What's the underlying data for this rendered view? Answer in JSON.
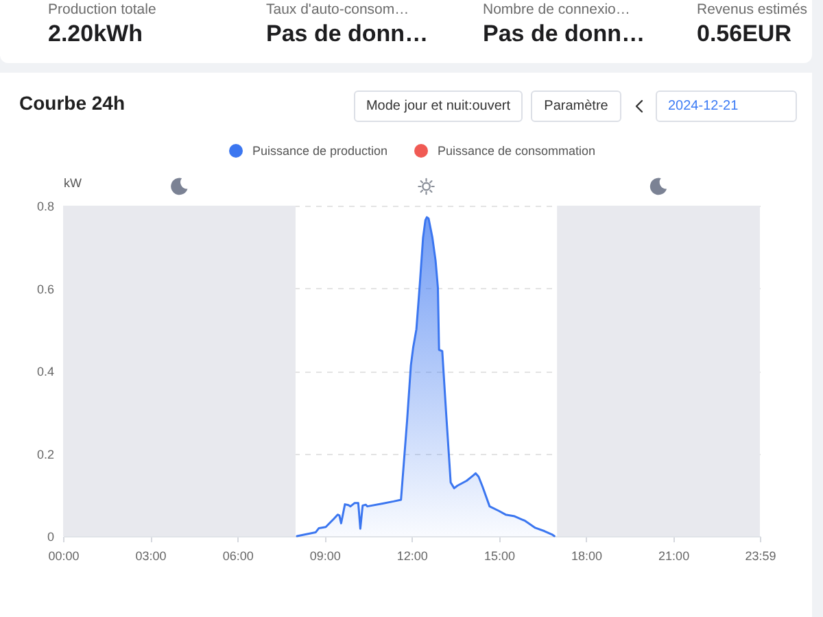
{
  "chart_data": [
    {
      "type": "other",
      "annotations": [
        "Production totale",
        "2.20kWh",
        "Taux d'auto-consom…",
        "Pas de donn…",
        "Nombre de connexio…",
        "Pas de donn…",
        "Revenus estimés",
        "0.56EUR"
      ]
    },
    {
      "type": "area",
      "title": "Courbe 24h",
      "ylabel": "kW",
      "annotations": [
        "Mode jour et nuit:ouvert",
        "Paramètre",
        "2024-12-21"
      ],
      "x": [
        8.05,
        8.4,
        8.69,
        8.8,
        9.04,
        9.32,
        9.45,
        9.51,
        9.57,
        9.7,
        9.82,
        9.89,
        10.03,
        10.16,
        10.23,
        10.31,
        10.42,
        10.47,
        11.0,
        11.37,
        11.63,
        11.84,
        11.97,
        12.05,
        12.16,
        12.28,
        12.39,
        12.47,
        12.52,
        12.58,
        12.71,
        12.82,
        12.9,
        12.94,
        13.05,
        13.18,
        13.34,
        13.46,
        13.57,
        13.89,
        14.12,
        14.2,
        14.3,
        14.44,
        14.68,
        15.0,
        15.23,
        15.54,
        15.9,
        16.25,
        16.57,
        16.85,
        16.91
      ],
      "series": [
        {
          "name": "Puissance de production",
          "color": "#3b76f0",
          "values": [
            0,
            0.005,
            0.009,
            0.019,
            0.022,
            0.042,
            0.052,
            0.05,
            0.031,
            0.077,
            0.075,
            0.072,
            0.08,
            0.08,
            0.018,
            0.074,
            0.076,
            0.072,
            0.079,
            0.084,
            0.088,
            0.28,
            0.413,
            0.457,
            0.501,
            0.612,
            0.723,
            0.765,
            0.772,
            0.769,
            0.723,
            0.667,
            0.601,
            0.451,
            0.448,
            0.302,
            0.13,
            0.116,
            0.122,
            0.134,
            0.147,
            0.152,
            0.144,
            0.119,
            0.072,
            0.061,
            0.052,
            0.048,
            0.037,
            0.02,
            0.012,
            0.003,
            0
          ]
        },
        {
          "name": "Puissance de consommation",
          "color": "#f05a54",
          "values": [
            null,
            null,
            null,
            null,
            null,
            null,
            null,
            null,
            null,
            null,
            null,
            null,
            null,
            null,
            null,
            null,
            null,
            null,
            null,
            null,
            null,
            null,
            null,
            null,
            null,
            null,
            null,
            null,
            null,
            null,
            null,
            null,
            null,
            null,
            null,
            null,
            null,
            null,
            null,
            null,
            null,
            null,
            null,
            null,
            null,
            null,
            null,
            null,
            null,
            null,
            null,
            null,
            null
          ]
        }
      ],
      "xlim": [
        0,
        23.983
      ],
      "xticks": [
        {
          "value": 0,
          "label": "00:00"
        },
        {
          "value": 3,
          "label": "03:00"
        },
        {
          "value": 6,
          "label": "06:00"
        },
        {
          "value": 9,
          "label": "09:00"
        },
        {
          "value": 12,
          "label": "12:00"
        },
        {
          "value": 15,
          "label": "15:00"
        },
        {
          "value": 18,
          "label": "18:00"
        },
        {
          "value": 21,
          "label": "21:00"
        },
        {
          "value": 23.983,
          "label": "23:59"
        }
      ],
      "ylim": [
        0,
        0.8
      ],
      "yticks": [
        0,
        0.2,
        0.4,
        0.6,
        0.8
      ],
      "grid": "y",
      "legend": "top",
      "bands": [
        {
          "axis": "x",
          "from": 0,
          "to": 8,
          "color": "#e8e9ee"
        },
        {
          "axis": "x",
          "from": 17,
          "to": 23.983,
          "color": "#e8e9ee"
        }
      ]
    }
  ]
}
